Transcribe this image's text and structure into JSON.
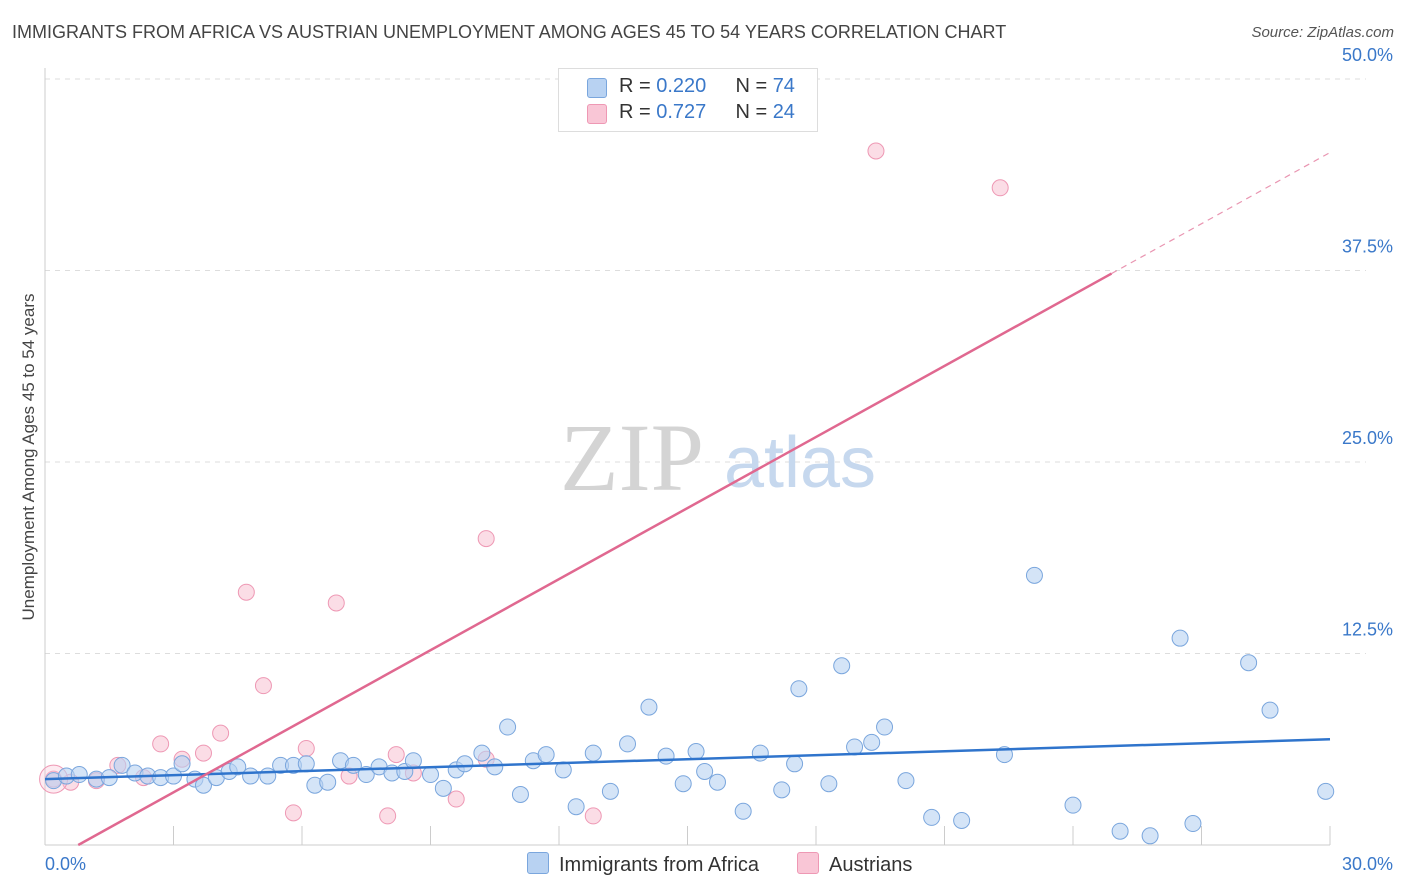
{
  "title": "IMMIGRANTS FROM AFRICA VS AUSTRIAN UNEMPLOYMENT AMONG AGES 45 TO 54 YEARS CORRELATION CHART",
  "source": "Source: ZipAtlas.com",
  "watermark": {
    "zip": "ZIP",
    "atlas": "atlas"
  },
  "legend": {
    "africa": {
      "r_label": "R = ",
      "r_value": "0.220",
      "n_label": "N = ",
      "n_value": "74"
    },
    "austrians": {
      "r_label": "R = ",
      "r_value": "0.727",
      "n_label": "N = ",
      "n_value": "24"
    }
  },
  "bottom_legend": {
    "africa": "Immigrants from Africa",
    "austrians": "Austrians"
  },
  "colors": {
    "africa_fill": "#b8d2f2",
    "africa_stroke": "#7aa6dd",
    "africa_line": "#2f74cc",
    "austrians_fill": "#f9c6d6",
    "austrians_stroke": "#ee98b4",
    "austrians_line": "#e06890",
    "tick_text": "#3a78c9",
    "grid": "#dddddd"
  },
  "chart_data": {
    "type": "scatter",
    "title": "IMMIGRANTS FROM AFRICA VS AUSTRIAN UNEMPLOYMENT AMONG AGES 45 TO 54 YEARS CORRELATION CHART",
    "xlabel": "",
    "ylabel": "Unemployment Among Ages 45 to 54 years",
    "xlim": [
      0,
      30
    ],
    "ylim": [
      0,
      50
    ],
    "x_tick_labels": [
      "0.0%",
      "30.0%"
    ],
    "y_ticks": [
      12.5,
      25.0,
      37.5,
      50.0
    ],
    "y_tick_labels": [
      "12.5%",
      "25.0%",
      "37.5%",
      "50.0%"
    ],
    "grid": true,
    "series": [
      {
        "name": "Immigrants from Africa",
        "points": [
          [
            0.2,
            4.2
          ],
          [
            0.5,
            4.5
          ],
          [
            0.8,
            4.6
          ],
          [
            1.2,
            4.3
          ],
          [
            1.5,
            4.4
          ],
          [
            1.8,
            5.2
          ],
          [
            2.1,
            4.7
          ],
          [
            2.4,
            4.5
          ],
          [
            2.7,
            4.4
          ],
          [
            3.0,
            4.5
          ],
          [
            3.2,
            5.3
          ],
          [
            3.5,
            4.3
          ],
          [
            3.7,
            3.9
          ],
          [
            4.0,
            4.4
          ],
          [
            4.3,
            4.8
          ],
          [
            4.5,
            5.1
          ],
          [
            4.8,
            4.5
          ],
          [
            5.2,
            4.5
          ],
          [
            5.5,
            5.2
          ],
          [
            5.8,
            5.2
          ],
          [
            6.1,
            5.3
          ],
          [
            6.3,
            3.9
          ],
          [
            6.6,
            4.1
          ],
          [
            6.9,
            5.5
          ],
          [
            7.2,
            5.2
          ],
          [
            7.5,
            4.6
          ],
          [
            7.8,
            5.1
          ],
          [
            8.1,
            4.7
          ],
          [
            8.4,
            4.8
          ],
          [
            8.6,
            5.5
          ],
          [
            9.0,
            4.6
          ],
          [
            9.3,
            3.7
          ],
          [
            9.6,
            4.9
          ],
          [
            9.8,
            5.3
          ],
          [
            10.2,
            6.0
          ],
          [
            10.5,
            5.1
          ],
          [
            10.8,
            7.7
          ],
          [
            11.1,
            3.3
          ],
          [
            11.4,
            5.5
          ],
          [
            11.7,
            5.9
          ],
          [
            12.1,
            4.9
          ],
          [
            12.4,
            2.5
          ],
          [
            12.8,
            6.0
          ],
          [
            13.2,
            3.5
          ],
          [
            13.6,
            6.6
          ],
          [
            14.1,
            9.0
          ],
          [
            14.5,
            5.8
          ],
          [
            14.9,
            4.0
          ],
          [
            15.2,
            6.1
          ],
          [
            15.4,
            4.8
          ],
          [
            15.7,
            4.1
          ],
          [
            16.3,
            2.2
          ],
          [
            16.7,
            6.0
          ],
          [
            17.2,
            3.6
          ],
          [
            17.6,
            10.2
          ],
          [
            17.5,
            5.3
          ],
          [
            18.3,
            4.0
          ],
          [
            18.6,
            11.7
          ],
          [
            18.9,
            6.4
          ],
          [
            19.3,
            6.7
          ],
          [
            19.6,
            7.7
          ],
          [
            20.1,
            4.2
          ],
          [
            20.7,
            1.8
          ],
          [
            21.4,
            1.6
          ],
          [
            22.4,
            5.9
          ],
          [
            23.1,
            17.6
          ],
          [
            24.0,
            2.6
          ],
          [
            25.1,
            0.9
          ],
          [
            25.8,
            0.6
          ],
          [
            26.5,
            13.5
          ],
          [
            26.8,
            1.4
          ],
          [
            28.1,
            11.9
          ],
          [
            28.6,
            8.8
          ],
          [
            29.9,
            3.5
          ]
        ],
        "trend": {
          "x": [
            0,
            30
          ],
          "y": [
            4.3,
            6.9
          ]
        }
      },
      {
        "name": "Austrians",
        "points": [
          [
            0.2,
            4.3
          ],
          [
            0.6,
            4.1
          ],
          [
            1.2,
            4.2
          ],
          [
            1.7,
            5.2
          ],
          [
            2.3,
            4.4
          ],
          [
            2.7,
            6.6
          ],
          [
            3.2,
            5.6
          ],
          [
            3.7,
            6.0
          ],
          [
            4.1,
            7.3
          ],
          [
            4.7,
            16.5
          ],
          [
            5.1,
            10.4
          ],
          [
            5.8,
            2.1
          ],
          [
            6.1,
            6.3
          ],
          [
            6.8,
            15.8
          ],
          [
            7.1,
            4.5
          ],
          [
            8.0,
            1.9
          ],
          [
            8.2,
            5.9
          ],
          [
            8.6,
            4.7
          ],
          [
            9.6,
            3.0
          ],
          [
            10.3,
            5.6
          ],
          [
            10.3,
            20.0
          ],
          [
            12.8,
            1.9
          ],
          [
            19.4,
            45.3
          ],
          [
            22.3,
            42.9
          ]
        ],
        "trend": {
          "x": [
            0,
            24.9
          ],
          "y": [
            -1.2,
            37.3
          ],
          "dashed_extension": {
            "x": [
              24.9,
              30
            ],
            "y": [
              37.3,
              45.2
            ]
          }
        }
      }
    ]
  }
}
